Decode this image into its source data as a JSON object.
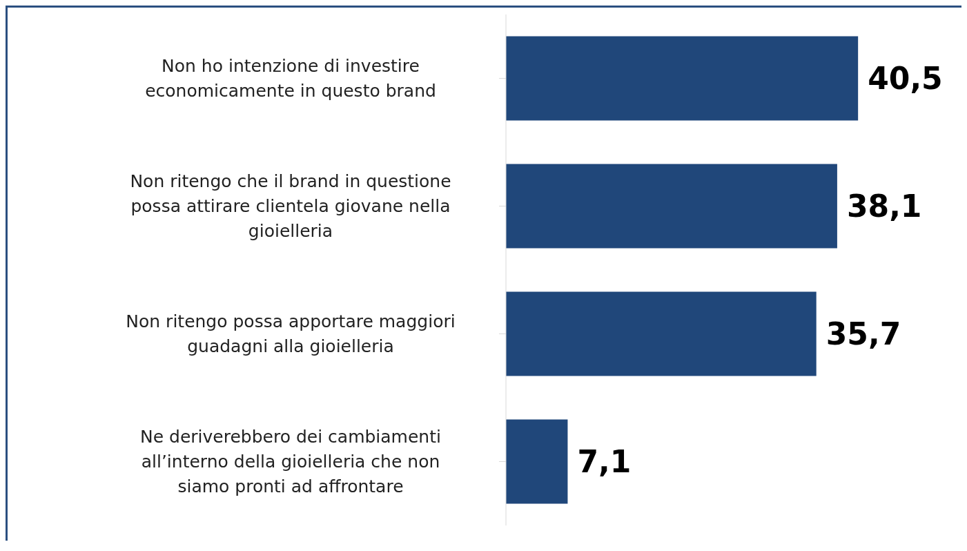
{
  "chart_data": {
    "type": "bar",
    "orientation": "horizontal",
    "categories": [
      "Non ho intenzione di investire economicamente in questo brand",
      "Non ritengo che il brand in questione possa attirare clientela giovane nella gioielleria",
      "Non ritengo possa apportare maggiori guadagni alla gioielleria",
      "Ne deriverebbero dei cambiamenti all’interno della gioielleria che non siamo pronti ad affrontare"
    ],
    "values": [
      40.5,
      38.1,
      35.7,
      7.1
    ],
    "value_labels": [
      "40,5",
      "38,1",
      "35,7",
      "7,1"
    ],
    "color": "#20477a"
  }
}
